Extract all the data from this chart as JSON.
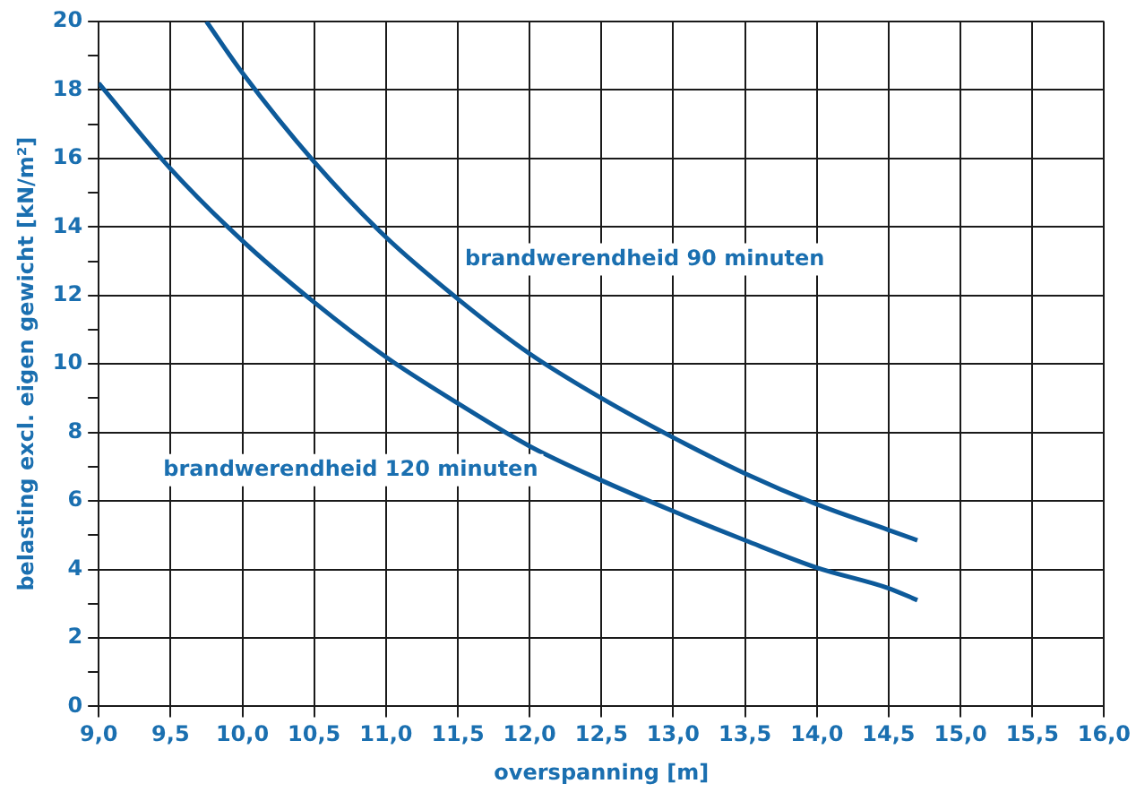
{
  "chart_data": {
    "type": "line",
    "xlabel": "overspanning [m]",
    "ylabel": "belasting excl. eigen gewicht [kN/m²]",
    "xlim": [
      9.0,
      16.0
    ],
    "xticks": [
      {
        "value": 9.0,
        "label": "9,0"
      },
      {
        "value": 9.5,
        "label": "9,5"
      },
      {
        "value": 10.0,
        "label": "10,0"
      },
      {
        "value": 10.5,
        "label": "10,5"
      },
      {
        "value": 11.0,
        "label": "11,0"
      },
      {
        "value": 11.5,
        "label": "11,5"
      },
      {
        "value": 12.0,
        "label": "12,0"
      },
      {
        "value": 12.5,
        "label": "12,5"
      },
      {
        "value": 13.0,
        "label": "13,0"
      },
      {
        "value": 13.5,
        "label": "13,5"
      },
      {
        "value": 14.0,
        "label": "14,0"
      },
      {
        "value": 14.5,
        "label": "14,5"
      },
      {
        "value": 15.0,
        "label": "15,0"
      },
      {
        "value": 15.5,
        "label": "15,5"
      },
      {
        "value": 16.0,
        "label": "16,0"
      }
    ],
    "ylim": [
      0,
      20
    ],
    "yticks": [
      0,
      {
        "value": 1,
        "label": null
      },
      2,
      {
        "value": 3,
        "label": null
      },
      4,
      {
        "value": 5,
        "label": null
      },
      6,
      {
        "value": 7,
        "label": null
      },
      8,
      {
        "value": 9,
        "label": null
      },
      10,
      {
        "value": 11,
        "label": null
      },
      12,
      {
        "value": 13,
        "label": null
      },
      14,
      {
        "value": 15,
        "label": null
      },
      16,
      {
        "value": 17,
        "label": null
      },
      18,
      {
        "value": 19,
        "label": null
      },
      20
    ],
    "grid": true,
    "legend": false,
    "marker": "none",
    "line_style": "solid",
    "series": [
      {
        "name": "brandwerendheid 90 minuten",
        "color": "#0d5a9a",
        "x": [
          9.75,
          10.0,
          10.5,
          11.0,
          11.5,
          12.0,
          12.5,
          13.0,
          13.5,
          14.0,
          14.5,
          14.7
        ],
        "values": [
          20,
          18.5,
          15.9,
          13.7,
          11.9,
          10.3,
          9.0,
          7.85,
          6.8,
          5.9,
          5.15,
          4.85
        ]
      },
      {
        "name": "brandwerendheid 120 minuten",
        "color": "#0d5a9a",
        "x": [
          9.0,
          9.5,
          10.0,
          10.5,
          11.0,
          11.5,
          12.0,
          12.5,
          13.0,
          13.5,
          14.0,
          14.5,
          14.7
        ],
        "values": [
          18.2,
          15.7,
          13.6,
          11.8,
          10.2,
          8.85,
          7.6,
          6.6,
          5.7,
          4.85,
          4.05,
          3.45,
          3.1
        ]
      }
    ]
  }
}
